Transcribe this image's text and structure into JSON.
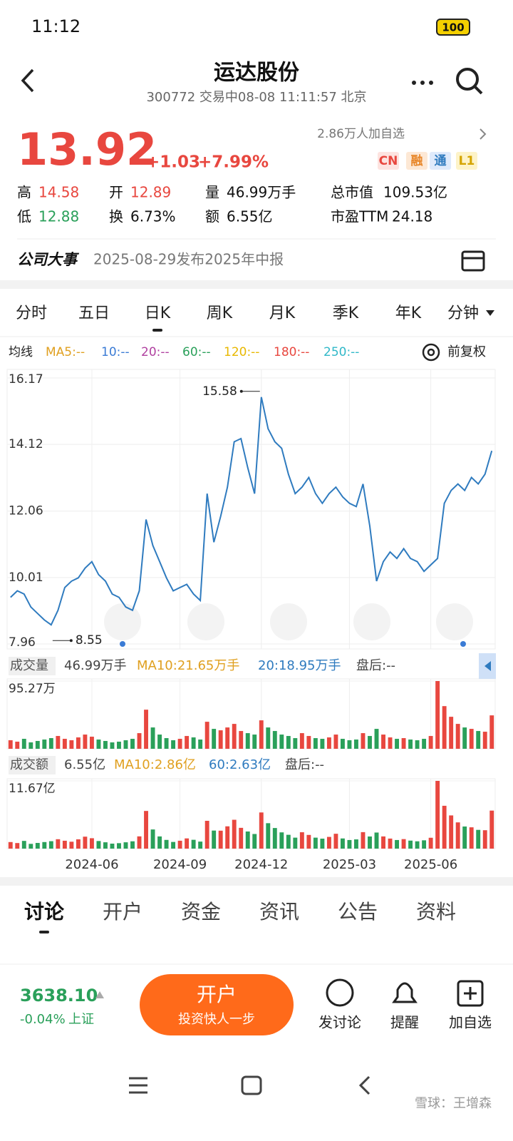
{
  "status_bar": {
    "time": "11:12",
    "battery": "100"
  },
  "header": {
    "title": "运达股份",
    "subtitle": "300772 交易中08-08 11:11:57 北京"
  },
  "quote": {
    "price": "13.92",
    "change": "+1.03",
    "change_pct": "+7.99%",
    "watchers": "2.86万人加自选",
    "badges": [
      "CN",
      "融",
      "通",
      "L1"
    ],
    "stats": [
      [
        "高",
        "14.58"
      ],
      [
        "开",
        "12.89"
      ],
      [
        "量",
        "46.99万手"
      ],
      [
        "总市值",
        "109.53亿"
      ],
      [
        "低",
        "12.88"
      ],
      [
        "换",
        "6.73%"
      ],
      [
        "额",
        "6.55亿"
      ],
      [
        "市盈TTM",
        "24.18"
      ]
    ]
  },
  "event": {
    "label": "公司大事",
    "text": "2025-08-29发布2025年中报"
  },
  "period_tabs": [
    "分时",
    "五日",
    "日K",
    "周K",
    "月K",
    "季K",
    "年K",
    "分钟"
  ],
  "ma_legend": {
    "label": "均线",
    "items": [
      "MA5:--",
      "10:--",
      "20:--",
      "60:--",
      "120:--",
      "180:--",
      "250:--"
    ],
    "adjust": "前复权"
  },
  "chart_data": [
    {
      "type": "line",
      "color": "#2f7bbf",
      "categories": [
        null,
        null,
        null,
        null,
        null,
        null,
        null,
        null,
        null,
        null,
        null,
        null,
        "2024-06",
        null,
        null,
        null,
        null,
        null,
        null,
        null,
        null,
        null,
        null,
        null,
        null,
        "2024-09",
        null,
        null,
        null,
        null,
        null,
        null,
        null,
        null,
        null,
        null,
        null,
        "2024-12",
        null,
        null,
        null,
        null,
        null,
        null,
        null,
        null,
        null,
        null,
        null,
        null,
        "2025-03",
        null,
        null,
        null,
        null,
        null,
        null,
        null,
        null,
        null,
        null,
        null,
        "2025-06",
        null,
        null,
        null,
        null,
        null,
        null,
        null,
        null,
        null
      ],
      "values": [
        9.4,
        9.6,
        9.5,
        9.1,
        8.9,
        8.7,
        8.55,
        9.0,
        9.7,
        9.9,
        10.0,
        10.3,
        10.5,
        10.1,
        9.9,
        9.5,
        9.4,
        9.1,
        9.0,
        9.6,
        11.8,
        11.0,
        10.5,
        10.0,
        9.6,
        9.7,
        9.8,
        9.5,
        9.3,
        12.6,
        11.1,
        11.9,
        12.8,
        14.2,
        14.3,
        13.4,
        12.6,
        15.58,
        14.6,
        14.2,
        14.0,
        13.2,
        12.6,
        12.8,
        13.1,
        12.6,
        12.3,
        12.6,
        12.8,
        12.5,
        12.3,
        12.2,
        12.9,
        11.6,
        9.9,
        10.5,
        10.8,
        10.6,
        10.9,
        10.6,
        10.5,
        10.2,
        10.4,
        10.6,
        12.3,
        12.7,
        12.9,
        12.7,
        13.1,
        12.9,
        13.2,
        13.92
      ],
      "ylim": [
        7.96,
        16.17
      ],
      "yticks": [
        16.17,
        14.12,
        12.06,
        10.01,
        7.96
      ],
      "grid": true
    },
    {
      "type": "bar",
      "legend": [
        "成交量",
        "46.99万手",
        "MA10:21.65万手",
        "20:18.95万手",
        "盘后:--"
      ],
      "values": [
        12,
        10,
        14,
        9,
        11,
        13,
        15,
        18,
        14,
        12,
        16,
        20,
        17,
        13,
        11,
        9,
        10,
        12,
        14,
        22,
        55,
        30,
        20,
        15,
        12,
        14,
        18,
        16,
        13,
        38,
        28,
        26,
        30,
        35,
        25,
        22,
        20,
        40,
        30,
        25,
        20,
        18,
        15,
        22,
        18,
        15,
        14,
        16,
        20,
        14,
        12,
        13,
        22,
        18,
        28,
        20,
        16,
        14,
        15,
        13,
        12,
        14,
        18,
        95.27,
        60,
        45,
        35,
        30,
        28,
        25,
        24,
        46.99
      ],
      "ylim": [
        0,
        95.27
      ],
      "yticks": [
        {
          "value": 95.27,
          "label": "95.27万"
        }
      ],
      "colors": {
        "up": "#e8473f",
        "down": "#2aa05a"
      }
    },
    {
      "type": "bar",
      "legend": [
        "成交额",
        "6.55亿",
        "MA10:2.86亿",
        "60:2.63亿",
        "盘后:--"
      ],
      "values": [
        1.13,
        0.96,
        1.33,
        0.82,
        0.98,
        1.13,
        1.28,
        1.62,
        1.36,
        1.19,
        1.6,
        2.06,
        1.79,
        1.31,
        1.09,
        0.86,
        0.94,
        1.09,
        1.26,
        2.11,
        6.49,
        3.3,
        2.1,
        1.5,
        1.15,
        1.36,
        1.76,
        1.52,
        1.21,
        4.79,
        3.11,
        3.09,
        3.84,
        4.97,
        3.58,
        2.95,
        2.52,
        6.23,
        4.38,
        3.55,
        2.8,
        2.38,
        1.89,
        2.82,
        2.36,
        1.89,
        1.72,
        2.02,
        2.56,
        1.75,
        1.48,
        1.59,
        2.84,
        2.09,
        2.77,
        2.1,
        1.73,
        1.48,
        1.64,
        1.38,
        1.26,
        1.43,
        1.87,
        11.67,
        7.38,
        5.72,
        4.52,
        3.81,
        3.67,
        3.23,
        3.17,
        6.55
      ],
      "ylim": [
        0,
        11.67
      ],
      "yticks": [
        {
          "value": 11.67,
          "label": "11.67亿"
        }
      ],
      "colors": {
        "up": "#e8473f",
        "down": "#2aa05a"
      }
    }
  ],
  "news_tabs": [
    "讨论",
    "开户",
    "资金",
    "资讯",
    "公告",
    "资料"
  ],
  "footer": {
    "index_value": "3638.10",
    "index_change": "-0.04%",
    "index_name": "上证",
    "cta_title": "开户",
    "cta_subtitle": "投资快人一步",
    "actions": [
      "发讨论",
      "提醒",
      "加自选"
    ]
  },
  "watermark": "雪球：王增森"
}
